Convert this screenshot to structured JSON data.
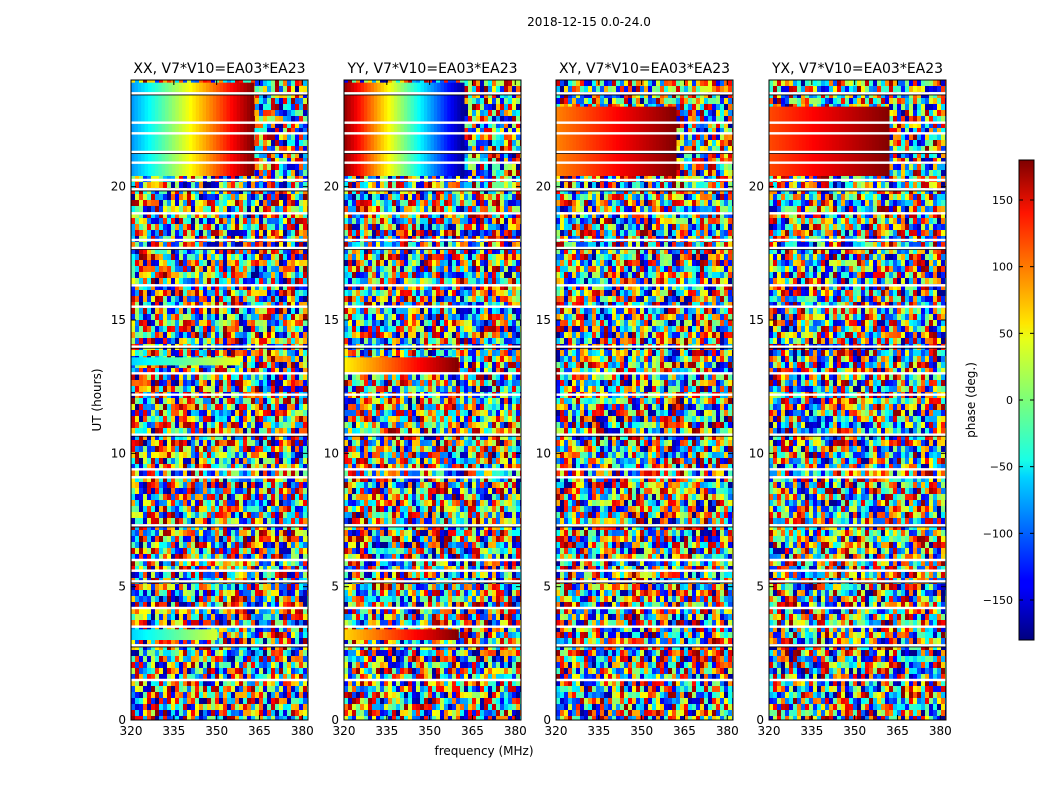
{
  "suptitle": "2018-12-15 0.0-24.0",
  "chart_data": {
    "type": "heatmap",
    "xlabel": "frequency (MHz)",
    "ylabel": "UT (hours)",
    "xlim": [
      320,
      382
    ],
    "ylim": [
      0,
      24
    ],
    "xticks": [
      320,
      335,
      350,
      365,
      380
    ],
    "yticks": [
      0,
      5,
      10,
      15,
      20
    ],
    "colorbar": {
      "label": "phase (deg.)",
      "range": [
        -180,
        180
      ],
      "ticks": [
        -150,
        -100,
        -50,
        0,
        50,
        100,
        150
      ],
      "tick_labels": [
        "−150",
        "−100",
        "−50",
        "0",
        "50",
        "100",
        "150"
      ],
      "colormap": "jet"
    },
    "panels": [
      {
        "title": "XX, V7*V10=EA03*EA23",
        "coherent_bands": [
          {
            "ut": [
              20.4,
              23.9
            ],
            "freq_end": 363,
            "phase_start": -80,
            "phase_end": 178
          },
          {
            "ut": [
              13.3,
              13.6
            ],
            "freq_end": 358,
            "phase_start": -60,
            "phase_end": 40
          },
          {
            "ut": [
              3.0,
              3.4
            ],
            "freq_end": 350,
            "phase_start": -60,
            "phase_end": 30
          }
        ]
      },
      {
        "title": "YY, V7*V10=EA03*EA23",
        "coherent_bands": [
          {
            "ut": [
              20.4,
              23.9
            ],
            "freq_end": 362,
            "phase_start": 170,
            "phase_end": -170
          },
          {
            "ut": [
              13.0,
              13.6
            ],
            "freq_end": 360,
            "phase_start": 50,
            "phase_end": 178
          },
          {
            "ut": [
              3.0,
              3.4
            ],
            "freq_end": 360,
            "phase_start": 60,
            "phase_end": 178
          }
        ]
      },
      {
        "title": "XY, V7*V10=EA03*EA23",
        "coherent_bands": [
          {
            "ut": [
              20.4,
              23.0
            ],
            "freq_end": 362,
            "phase_start": 90,
            "phase_end": 178
          }
        ]
      },
      {
        "title": "YX, V7*V10=EA03*EA23",
        "coherent_bands": [
          {
            "ut": [
              20.4,
              23.0
            ],
            "freq_end": 362,
            "phase_start": 110,
            "phase_end": 178
          }
        ]
      }
    ]
  }
}
